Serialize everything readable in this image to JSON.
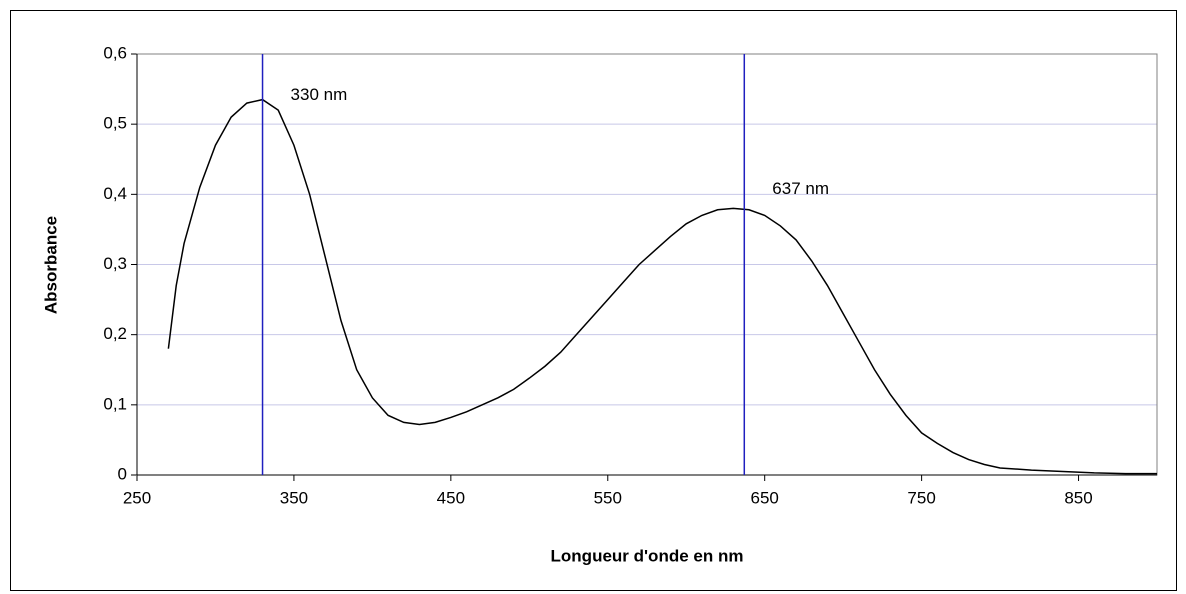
{
  "chart_data": {
    "type": "line",
    "xlabel": "Longueur d'onde en nm",
    "ylabel": "Absorbance",
    "x": [
      270,
      275,
      280,
      290,
      300,
      310,
      320,
      330,
      340,
      350,
      360,
      370,
      380,
      390,
      400,
      410,
      420,
      430,
      440,
      450,
      460,
      470,
      480,
      490,
      500,
      510,
      520,
      530,
      540,
      550,
      560,
      570,
      580,
      590,
      600,
      610,
      620,
      630,
      640,
      650,
      660,
      670,
      680,
      690,
      700,
      710,
      720,
      730,
      740,
      750,
      760,
      770,
      780,
      790,
      800,
      820,
      840,
      860,
      880,
      900
    ],
    "series": [
      {
        "color": "#000000",
        "values": [
          0.18,
          0.27,
          0.33,
          0.41,
          0.47,
          0.51,
          0.53,
          0.535,
          0.52,
          0.47,
          0.4,
          0.31,
          0.22,
          0.15,
          0.11,
          0.085,
          0.075,
          0.072,
          0.075,
          0.082,
          0.09,
          0.1,
          0.11,
          0.122,
          0.138,
          0.155,
          0.175,
          0.2,
          0.225,
          0.25,
          0.275,
          0.3,
          0.32,
          0.34,
          0.358,
          0.37,
          0.378,
          0.38,
          0.378,
          0.37,
          0.355,
          0.335,
          0.305,
          0.27,
          0.23,
          0.19,
          0.15,
          0.115,
          0.085,
          0.06,
          0.045,
          0.032,
          0.022,
          0.015,
          0.01,
          0.007,
          0.005,
          0.003,
          0.002,
          0.002
        ]
      }
    ],
    "annotations": [
      {
        "text": "330 nm",
        "x": 330,
        "color": "#1f1fbf"
      },
      {
        "text": "637 nm",
        "x": 637,
        "color": "#1f1fbf"
      }
    ],
    "xlim": [
      250,
      900
    ],
    "xticks": [
      250,
      350,
      450,
      550,
      650,
      750,
      850
    ],
    "ylim": [
      0,
      0.6
    ],
    "yticks": [
      0,
      {
        "value": 0.1,
        "label": "0,1"
      },
      {
        "value": 0.2,
        "label": "0,2"
      },
      {
        "value": 0.3,
        "label": "0,3"
      },
      {
        "value": 0.4,
        "label": "0,4"
      },
      {
        "value": 0.5,
        "label": "0,5"
      },
      {
        "value": 0.6,
        "label": "0,6"
      }
    ],
    "grid": true
  }
}
